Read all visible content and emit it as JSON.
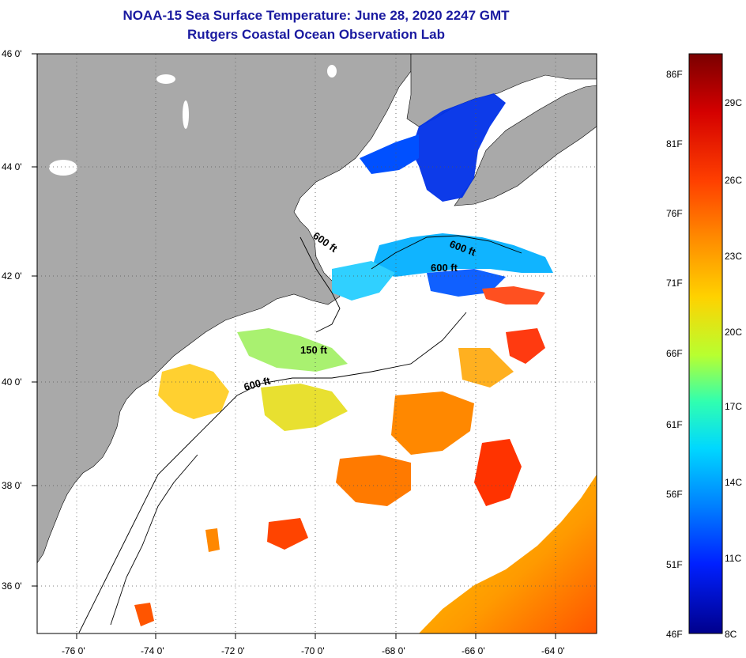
{
  "header": {
    "title": "NOAA-15 Sea Surface Temperature:  June 28, 2020 2247 GMT",
    "subtitle": "Rutgers Coastal Ocean Observation Lab"
  },
  "map": {
    "lon_ticks": [
      "-76 0'",
      "-74 0'",
      "-72 0'",
      "-70 0'",
      "-68 0'",
      "-66 0'",
      "-64 0'"
    ],
    "lat_ticks": [
      "46 0'",
      "44 0'",
      "42 0'",
      "40 0'",
      "38 0'",
      "36 0'"
    ],
    "lon_range": [
      -77,
      -63
    ],
    "lat_range": [
      35,
      46
    ],
    "land_color": "#a9a9a9",
    "no_data_color": "#ffffff",
    "contour_labels": [
      "600 ft",
      "600 ft",
      "600 ft",
      "150 ft",
      "600 ft"
    ]
  },
  "colorbar": {
    "fahrenheit_labels": [
      "86F",
      "81F",
      "76F",
      "71F",
      "66F",
      "61F",
      "56F",
      "51F",
      "46F"
    ],
    "celsius_labels": [
      "29C",
      "26C",
      "23C",
      "20C",
      "17C",
      "14C",
      "11C",
      "8C"
    ],
    "colors": [
      "#7a0000",
      "#d40000",
      "#ff4000",
      "#ff8c00",
      "#ffd200",
      "#b8ff30",
      "#30ffb0",
      "#00d8ff",
      "#0080ff",
      "#0020ff",
      "#00008c"
    ]
  }
}
